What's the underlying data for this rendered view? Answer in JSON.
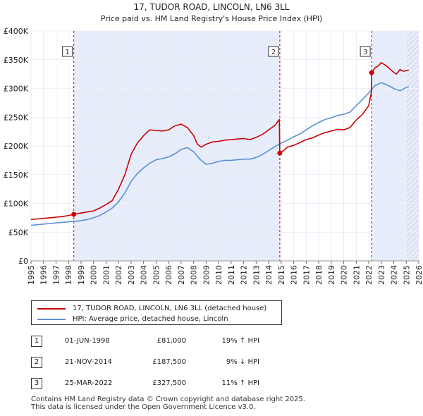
{
  "chart_data": {
    "type": "line",
    "title": "17, TUDOR ROAD, LINCOLN, LN6 3LL",
    "subtitle": "Price paid vs. HM Land Registry's House Price Index (HPI)",
    "xlabel": "",
    "ylabel": "",
    "xlim": [
      1995,
      2026
    ],
    "ylim": [
      0,
      400000
    ],
    "x_ticks": [
      "1995",
      "1996",
      "1997",
      "1998",
      "1999",
      "2000",
      "2001",
      "2002",
      "2003",
      "2004",
      "2005",
      "2006",
      "2007",
      "2008",
      "2009",
      "2010",
      "2011",
      "2012",
      "2013",
      "2014",
      "2015",
      "2016",
      "2017",
      "2018",
      "2019",
      "2020",
      "2021",
      "2022",
      "2023",
      "2024",
      "2025",
      "2026"
    ],
    "y_ticks": [
      {
        "value": 0,
        "label": "£0"
      },
      {
        "value": 50000,
        "label": "£50K"
      },
      {
        "value": 100000,
        "label": "£100K"
      },
      {
        "value": 150000,
        "label": "£150K"
      },
      {
        "value": 200000,
        "label": "£200K"
      },
      {
        "value": 250000,
        "label": "£250K"
      },
      {
        "value": 300000,
        "label": "£300K"
      },
      {
        "value": 350000,
        "label": "£350K"
      },
      {
        "value": 400000,
        "label": "£400K"
      }
    ],
    "grid": true,
    "shaded_ranges": [
      [
        1998.42,
        2014.89
      ],
      [
        2022.23,
        2026
      ]
    ],
    "hatched_range": [
      2025.0,
      2026
    ],
    "series": [
      {
        "name": "17, TUDOR ROAD, LINCOLN, LN6 3LL (detached house)",
        "color": "#cc0000",
        "x": [
          1995.0,
          1995.5,
          1996.0,
          1996.5,
          1997.0,
          1997.5,
          1998.0,
          1998.42,
          1998.9,
          1999.5,
          2000.0,
          2000.5,
          2001.0,
          2001.5,
          2002.0,
          2002.5,
          2003.0,
          2003.5,
          2004.0,
          2004.5,
          2005.0,
          2005.5,
          2006.0,
          2006.5,
          2007.0,
          2007.5,
          2008.0,
          2008.3,
          2008.6,
          2009.0,
          2009.5,
          2010.0,
          2010.5,
          2011.0,
          2011.5,
          2012.0,
          2012.5,
          2013.0,
          2013.5,
          2014.0,
          2014.5,
          2014.85,
          2014.89,
          2015.2,
          2015.5,
          2016.0,
          2016.5,
          2017.0,
          2017.5,
          2018.0,
          2018.5,
          2019.0,
          2019.5,
          2020.0,
          2020.5,
          2021.0,
          2021.5,
          2022.0,
          2022.2,
          2022.23,
          2022.5,
          2022.8,
          2023.0,
          2023.3,
          2023.6,
          2023.9,
          2024.2,
          2024.5,
          2024.8,
          2025.2
        ],
        "y": [
          72000,
          73000,
          74000,
          75000,
          76000,
          77000,
          79000,
          81000,
          83000,
          85000,
          87000,
          92000,
          98000,
          105000,
          125000,
          150000,
          185000,
          205000,
          218000,
          228000,
          227000,
          226000,
          228000,
          235000,
          238000,
          232000,
          218000,
          203000,
          198000,
          203000,
          207000,
          208000,
          210000,
          211000,
          212000,
          213000,
          211000,
          215000,
          220000,
          228000,
          236000,
          246000,
          187500,
          192000,
          198000,
          201000,
          206000,
          211000,
          214000,
          219000,
          223000,
          226000,
          229000,
          228000,
          232000,
          245000,
          255000,
          270000,
          292000,
          327500,
          336000,
          340000,
          345000,
          341000,
          336000,
          330000,
          325000,
          333000,
          330000,
          332000
        ]
      },
      {
        "name": "HPI: Average price, detached house, Lincoln",
        "color": "#5b8fd2",
        "x": [
          1995.0,
          1995.5,
          1996.0,
          1996.5,
          1997.0,
          1997.5,
          1998.0,
          1998.5,
          1999.0,
          1999.5,
          2000.0,
          2000.5,
          2001.0,
          2001.5,
          2002.0,
          2002.5,
          2003.0,
          2003.5,
          2004.0,
          2004.5,
          2005.0,
          2005.5,
          2006.0,
          2006.5,
          2007.0,
          2007.5,
          2008.0,
          2008.5,
          2009.0,
          2009.5,
          2010.0,
          2010.5,
          2011.0,
          2011.5,
          2012.0,
          2012.5,
          2013.0,
          2013.5,
          2014.0,
          2014.5,
          2015.0,
          2015.5,
          2016.0,
          2016.5,
          2017.0,
          2017.5,
          2018.0,
          2018.5,
          2019.0,
          2019.5,
          2020.0,
          2020.5,
          2021.0,
          2021.5,
          2022.0,
          2022.5,
          2023.0,
          2023.5,
          2024.0,
          2024.5,
          2025.0,
          2025.2
        ],
        "y": [
          62000,
          63000,
          64000,
          65000,
          66000,
          67000,
          68000,
          69000,
          70000,
          72000,
          75000,
          79000,
          85000,
          92000,
          103000,
          118000,
          138000,
          152000,
          162000,
          170000,
          176000,
          178000,
          181000,
          186000,
          194000,
          197000,
          190000,
          177000,
          168000,
          170000,
          173000,
          175000,
          175000,
          176000,
          177000,
          177000,
          180000,
          185000,
          192000,
          199000,
          205000,
          210000,
          216000,
          221000,
          228000,
          235000,
          241000,
          246000,
          249000,
          253000,
          255000,
          259000,
          270000,
          281000,
          292000,
          305000,
          310000,
          306000,
          300000,
          296000,
          302000,
          303000
        ]
      }
    ],
    "sale_markers": [
      {
        "label": "1",
        "x": 1998.42,
        "y": 81000
      },
      {
        "label": "2",
        "x": 2014.89,
        "y": 187500
      },
      {
        "label": "3",
        "x": 2022.23,
        "y": 327500
      }
    ]
  },
  "legend": {
    "items": [
      {
        "label": "17, TUDOR ROAD, LINCOLN, LN6 3LL (detached house)",
        "color": "#cc0000"
      },
      {
        "label": "HPI: Average price, detached house, Lincoln",
        "color": "#5b8fd2"
      }
    ]
  },
  "sales_table": [
    {
      "num": "1",
      "date": "01-JUN-1998",
      "price": "£81,000",
      "hpi": "19% ↑ HPI"
    },
    {
      "num": "2",
      "date": "21-NOV-2014",
      "price": "£187,500",
      "hpi": "9% ↓ HPI"
    },
    {
      "num": "3",
      "date": "25-MAR-2022",
      "price": "£327,500",
      "hpi": "11% ↑ HPI"
    }
  ],
  "footer": {
    "line1": "Contains HM Land Registry data © Crown copyright and database right 2025.",
    "line2": "This data is licensed under the Open Government Licence v3.0."
  }
}
